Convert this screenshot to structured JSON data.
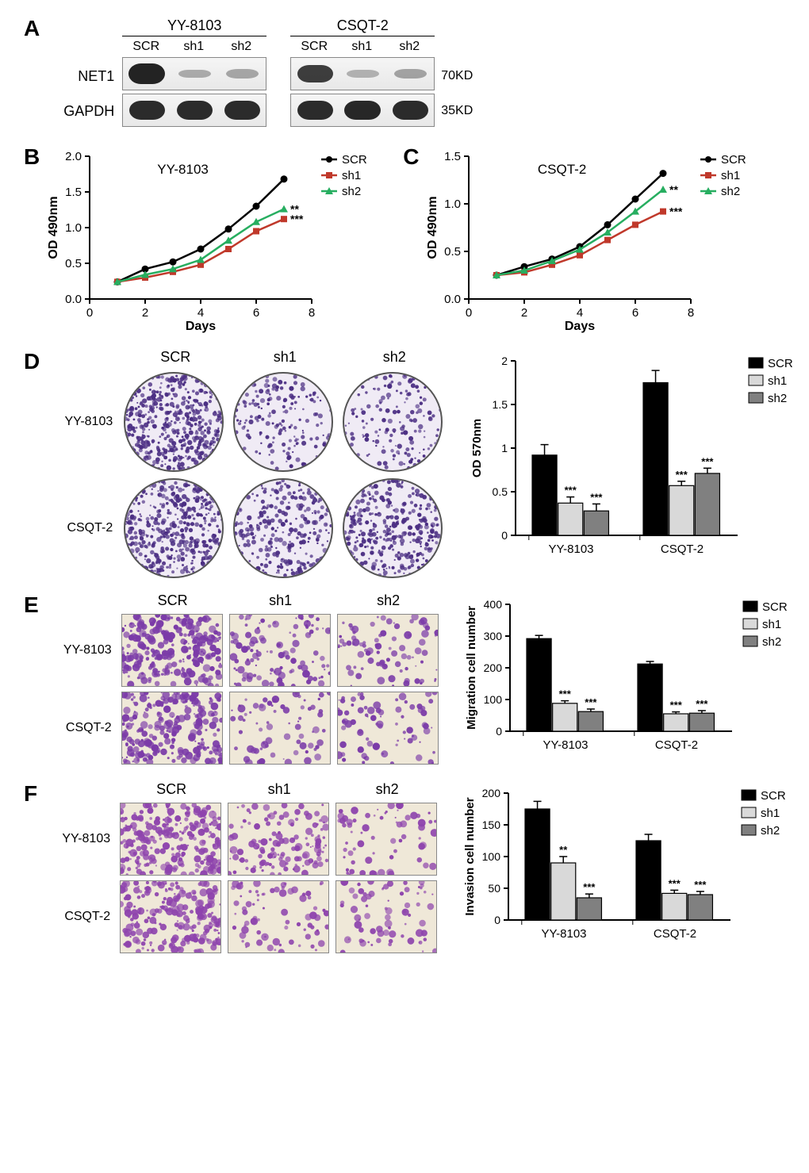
{
  "panelA": {
    "label": "A",
    "cell_lines": [
      "YY-8103",
      "CSQT-2"
    ],
    "lanes": [
      "SCR",
      "sh1",
      "sh2"
    ],
    "rows": [
      {
        "name": "NET1",
        "kd": "70KD",
        "intensities_yy": [
          0.95,
          0.15,
          0.18
        ],
        "intensities_cs": [
          0.8,
          0.12,
          0.2
        ]
      },
      {
        "name": "GAPDH",
        "kd": "35KD",
        "intensities_yy": [
          0.9,
          0.9,
          0.9
        ],
        "intensities_cs": [
          0.9,
          0.92,
          0.9
        ]
      }
    ]
  },
  "panelB": {
    "label": "B",
    "title": "YY-8103",
    "xlabel": "Days",
    "ylabel": "OD 490nm",
    "xlim": [
      0,
      8
    ],
    "ylim": [
      0,
      2.0
    ],
    "xticks": [
      0,
      2,
      4,
      6,
      8
    ],
    "yticks": [
      0,
      0.5,
      1.0,
      1.5,
      2.0
    ],
    "series": [
      {
        "name": "SCR",
        "color": "#000000",
        "marker": "circle",
        "sig": "",
        "x": [
          1,
          2,
          3,
          4,
          5,
          6,
          7
        ],
        "y": [
          0.24,
          0.42,
          0.52,
          0.7,
          0.98,
          1.3,
          1.68
        ]
      },
      {
        "name": "sh1",
        "color": "#c0392b",
        "marker": "square",
        "sig": "***",
        "x": [
          1,
          2,
          3,
          4,
          5,
          6,
          7
        ],
        "y": [
          0.24,
          0.3,
          0.38,
          0.48,
          0.7,
          0.95,
          1.12
        ]
      },
      {
        "name": "sh2",
        "color": "#27ae60",
        "marker": "triangle",
        "sig": "**",
        "x": [
          1,
          2,
          3,
          4,
          5,
          6,
          7
        ],
        "y": [
          0.24,
          0.34,
          0.42,
          0.55,
          0.82,
          1.08,
          1.26
        ]
      }
    ]
  },
  "panelC": {
    "label": "C",
    "title": "CSQT-2",
    "xlabel": "Days",
    "ylabel": "OD 490nm",
    "xlim": [
      0,
      8
    ],
    "ylim": [
      0,
      1.5
    ],
    "xticks": [
      0,
      2,
      4,
      6,
      8
    ],
    "yticks": [
      0,
      0.5,
      1.0,
      1.5
    ],
    "series": [
      {
        "name": "SCR",
        "color": "#000000",
        "marker": "circle",
        "sig": "",
        "x": [
          1,
          2,
          3,
          4,
          5,
          6,
          7
        ],
        "y": [
          0.25,
          0.34,
          0.42,
          0.55,
          0.78,
          1.05,
          1.32
        ]
      },
      {
        "name": "sh1",
        "color": "#c0392b",
        "marker": "square",
        "sig": "***",
        "x": [
          1,
          2,
          3,
          4,
          5,
          6,
          7
        ],
        "y": [
          0.25,
          0.28,
          0.36,
          0.46,
          0.62,
          0.78,
          0.92
        ]
      },
      {
        "name": "sh2",
        "color": "#27ae60",
        "marker": "triangle",
        "sig": "**",
        "x": [
          1,
          2,
          3,
          4,
          5,
          6,
          7
        ],
        "y": [
          0.25,
          0.3,
          0.4,
          0.52,
          0.7,
          0.92,
          1.15
        ]
      }
    ]
  },
  "panelD": {
    "label": "D",
    "image_cols": [
      "SCR",
      "sh1",
      "sh2"
    ],
    "image_rows": [
      "YY-8103",
      "CSQT-2"
    ],
    "density": [
      [
        0.95,
        0.35,
        0.28
      ],
      [
        0.98,
        0.55,
        0.7
      ]
    ],
    "colony_color": "#4b2e83",
    "bar": {
      "ylabel": "OD 570nm",
      "ylim": [
        0,
        2.0
      ],
      "yticks": [
        0,
        0.5,
        1.0,
        1.5,
        2.0
      ],
      "groups": [
        "YY-8103",
        "CSQT-2"
      ],
      "legend": [
        "SCR",
        "sh1",
        "sh2"
      ],
      "colors": [
        "#000000",
        "#d9d9d9",
        "#808080"
      ],
      "values": [
        [
          0.92,
          0.37,
          0.28
        ],
        [
          1.75,
          0.57,
          0.71
        ]
      ],
      "errors": [
        [
          0.12,
          0.07,
          0.08
        ],
        [
          0.14,
          0.05,
          0.06
        ]
      ],
      "sig": [
        [
          "",
          "***",
          "***"
        ],
        [
          "",
          "***",
          "***"
        ]
      ]
    }
  },
  "panelE": {
    "label": "E",
    "image_cols": [
      "SCR",
      "sh1",
      "sh2"
    ],
    "image_rows": [
      "YY-8103",
      "CSQT-2"
    ],
    "density": [
      [
        0.9,
        0.35,
        0.25
      ],
      [
        0.85,
        0.2,
        0.22
      ]
    ],
    "cell_color": "#7b3ba8",
    "bar": {
      "ylabel": "Migration cell number",
      "ylim": [
        0,
        400
      ],
      "yticks": [
        0,
        100,
        200,
        300,
        400
      ],
      "groups": [
        "YY-8103",
        "CSQT-2"
      ],
      "legend": [
        "SCR",
        "sh1",
        "sh2"
      ],
      "colors": [
        "#000000",
        "#d9d9d9",
        "#808080"
      ],
      "values": [
        [
          292,
          88,
          62
        ],
        [
          212,
          55,
          57
        ]
      ],
      "errors": [
        [
          10,
          8,
          8
        ],
        [
          8,
          6,
          8
        ]
      ],
      "sig": [
        [
          "",
          "***",
          "***"
        ],
        [
          "",
          "***",
          "***"
        ]
      ]
    }
  },
  "panelF": {
    "label": "F",
    "image_cols": [
      "SCR",
      "sh1",
      "sh2"
    ],
    "image_rows": [
      "YY-8103",
      "CSQT-2"
    ],
    "density": [
      [
        0.85,
        0.45,
        0.18
      ],
      [
        0.75,
        0.22,
        0.2
      ]
    ],
    "cell_color": "#8e44ad",
    "bar": {
      "ylabel": "Invasion cell number",
      "ylim": [
        0,
        200
      ],
      "yticks": [
        0,
        50,
        100,
        150,
        200
      ],
      "groups": [
        "YY-8103",
        "CSQT-2"
      ],
      "legend": [
        "SCR",
        "sh1",
        "sh2"
      ],
      "colors": [
        "#000000",
        "#d9d9d9",
        "#808080"
      ],
      "values": [
        [
          175,
          90,
          35
        ],
        [
          125,
          42,
          40
        ]
      ],
      "errors": [
        [
          12,
          10,
          6
        ],
        [
          10,
          5,
          5
        ]
      ],
      "sig": [
        [
          "",
          "**",
          "***"
        ],
        [
          "",
          "***",
          "***"
        ]
      ]
    }
  }
}
